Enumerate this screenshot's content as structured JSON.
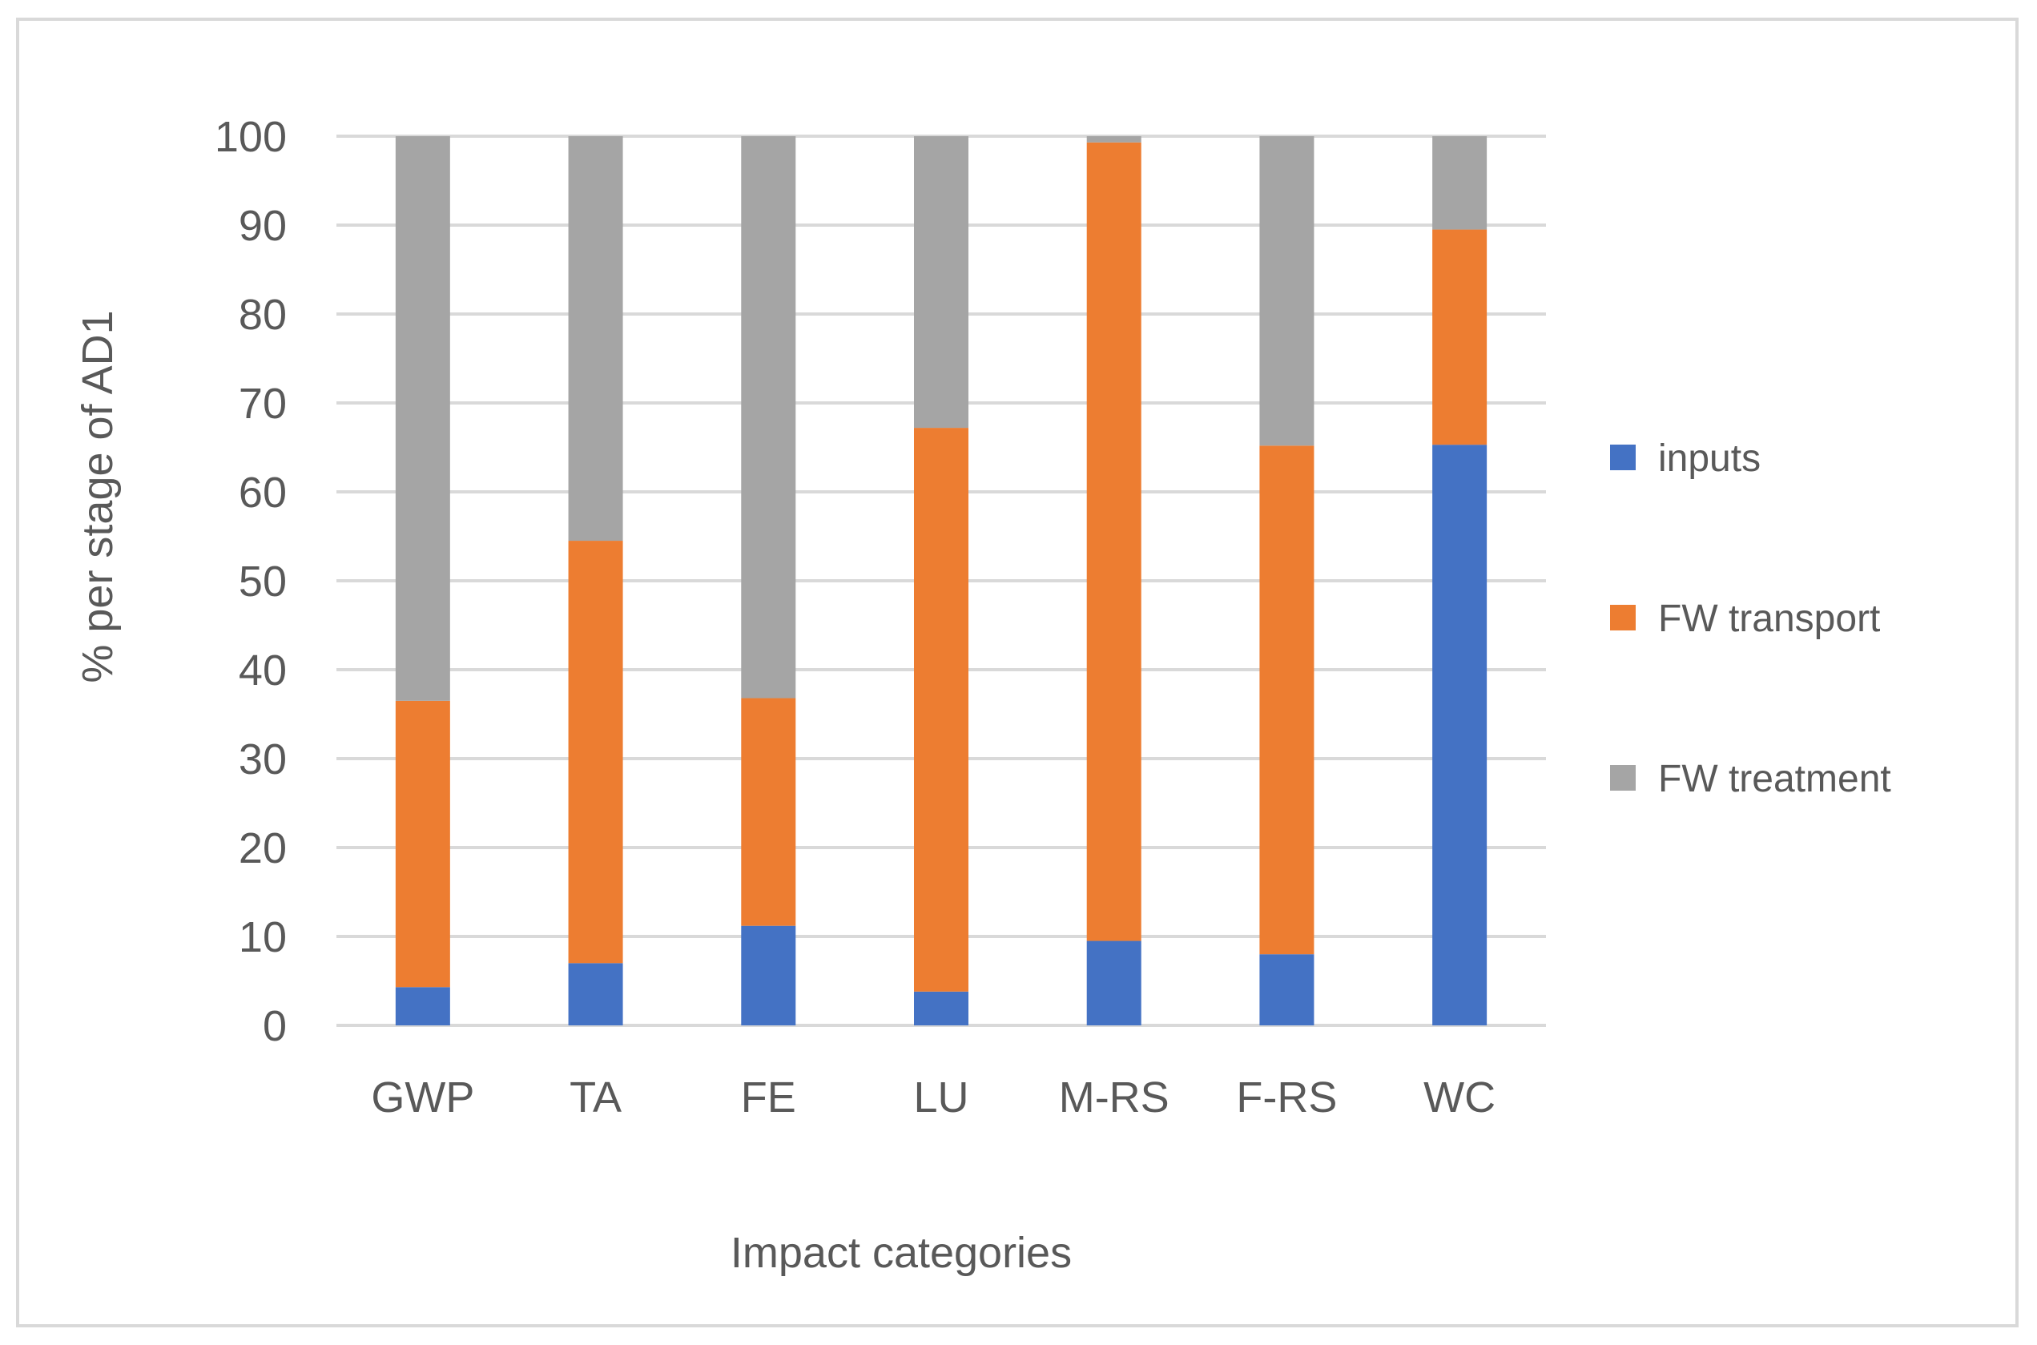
{
  "chart_data": {
    "type": "bar",
    "stacked": true,
    "title": "",
    "xlabel": "Impact categories",
    "ylabel": "% per stage of AD1",
    "ylim": [
      0,
      100
    ],
    "yticks": [
      0,
      10,
      20,
      30,
      40,
      50,
      60,
      70,
      80,
      90,
      100
    ],
    "grid": true,
    "legend_position": "right",
    "categories": [
      "GWP",
      "TA",
      "FE",
      "LU",
      "M-RS",
      "F-RS",
      "WC"
    ],
    "series": [
      {
        "name": "inputs",
        "color": "#4472C4",
        "values": [
          4.3,
          7.0,
          11.2,
          3.8,
          9.5,
          8.0,
          65.3
        ]
      },
      {
        "name": "FW transport",
        "color": "#ED7D31",
        "values": [
          32.2,
          47.5,
          25.6,
          63.4,
          89.8,
          57.2,
          24.2
        ]
      },
      {
        "name": "FW treatment",
        "color": "#A5A5A5",
        "values": [
          63.5,
          45.5,
          63.2,
          32.8,
          0.7,
          34.8,
          10.5
        ]
      }
    ]
  },
  "colors": {
    "grid": "#d9d9d9",
    "text": "#595959",
    "frame": "#d9d9d9"
  }
}
